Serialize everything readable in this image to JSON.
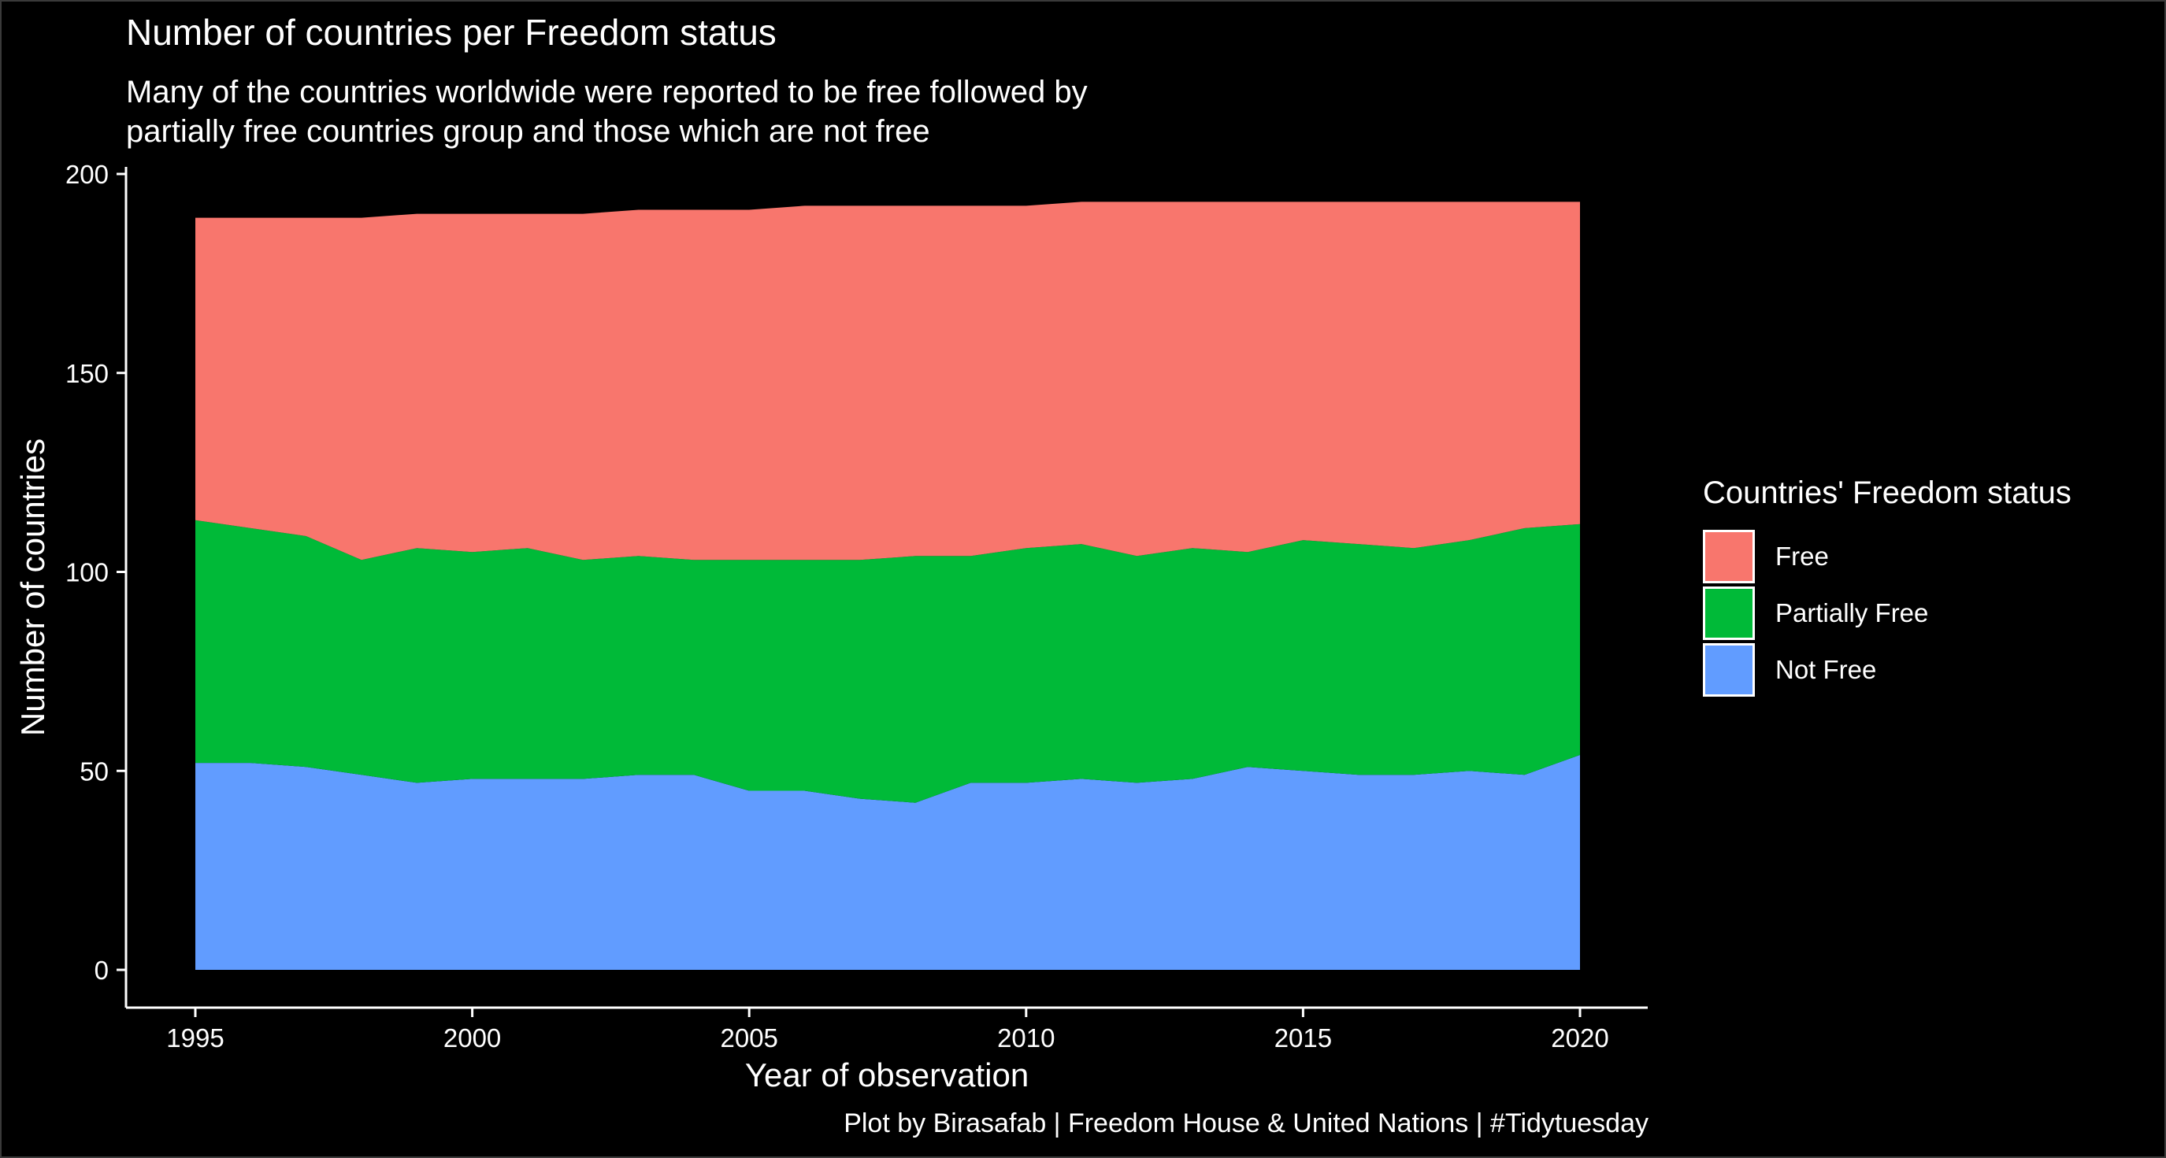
{
  "chart_data": {
    "type": "area",
    "stacked": true,
    "title": "Number of countries per Freedom status",
    "subtitle": "Many of the countries worldwide were reported to be free followed by\n partially free countries group and those which are not free",
    "xlabel": "Year of observation",
    "ylabel": "Number of countries",
    "caption": "Plot by Birasafab | Freedom House & United Nations | #Tidytuesday",
    "xlim": [
      1995,
      2020
    ],
    "ylim": [
      0,
      200
    ],
    "x_ticks": [
      1995,
      2000,
      2005,
      2010,
      2015,
      2020
    ],
    "y_ticks": [
      0,
      50,
      100,
      150,
      200
    ],
    "grid": false,
    "legend": {
      "title": "Countries' Freedom status",
      "position": "right",
      "entries": [
        "Free",
        "Partially Free",
        "Not Free"
      ]
    },
    "x": [
      1995,
      1996,
      1997,
      1998,
      1999,
      2000,
      2001,
      2002,
      2003,
      2004,
      2005,
      2006,
      2007,
      2008,
      2009,
      2010,
      2011,
      2012,
      2013,
      2014,
      2015,
      2016,
      2017,
      2018,
      2019,
      2020
    ],
    "series": [
      {
        "name": "Not Free",
        "color": "#619CFF",
        "values": [
          52,
          52,
          51,
          49,
          47,
          48,
          48,
          48,
          49,
          49,
          45,
          45,
          43,
          42,
          47,
          47,
          48,
          47,
          48,
          51,
          50,
          49,
          49,
          50,
          49,
          54
        ]
      },
      {
        "name": "Partially Free",
        "color": "#00BA38",
        "values": [
          61,
          59,
          58,
          54,
          59,
          57,
          58,
          55,
          55,
          54,
          58,
          58,
          60,
          62,
          57,
          59,
          59,
          57,
          58,
          54,
          58,
          58,
          57,
          58,
          62,
          58
        ]
      },
      {
        "name": "Free",
        "color": "#F8766D",
        "values": [
          76,
          78,
          80,
          86,
          84,
          85,
          84,
          87,
          87,
          88,
          88,
          89,
          89,
          88,
          88,
          86,
          86,
          89,
          87,
          88,
          85,
          86,
          87,
          85,
          82,
          81
        ]
      }
    ]
  }
}
